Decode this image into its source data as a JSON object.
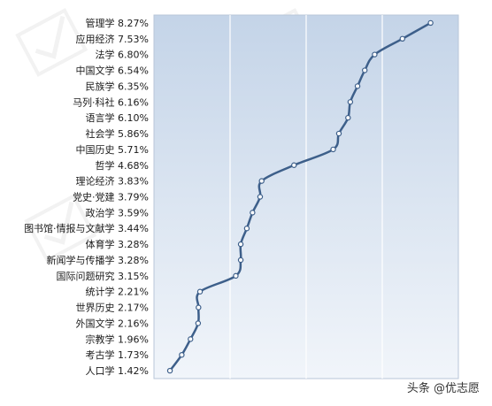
{
  "footer": {
    "source_label": "头条 @优志愿"
  },
  "colors": {
    "line": "#3d5f8a",
    "marker_fill": "#ffffff",
    "grid": "#ffffff",
    "plot_bg_start": "#c4d4e8",
    "plot_bg_end": "#f1f5fa"
  },
  "chart_data": {
    "type": "line",
    "orientation": "vertical-categories",
    "title": "",
    "xlabel": "",
    "ylabel": "",
    "xlim": [
      1.0,
      9.0
    ],
    "grid": true,
    "legend": "none",
    "categories": [
      "管理学 8.27%",
      "应用经济 7.53%",
      "法学 6.80%",
      "中国文学 6.54%",
      "民族学 6.35%",
      "马列·科社 6.16%",
      "语言学 6.10%",
      "社会学 5.86%",
      "中国历史 5.71%",
      "哲学 4.68%",
      "理论经济 3.83%",
      "党史·党建 3.79%",
      "政治学 3.59%",
      "图书馆·情报与文献学 3.44%",
      "体育学 3.28%",
      "新闻学与传播学 3.28%",
      "国际问题研究 3.15%",
      "统计学 2.21%",
      "世界历史 2.17%",
      "外国文学 2.16%",
      "宗教学 1.96%",
      "考古学 1.73%",
      "人口学 1.42%"
    ],
    "values": [
      8.27,
      7.53,
      6.8,
      6.54,
      6.35,
      6.16,
      6.1,
      5.86,
      5.71,
      4.68,
      3.83,
      3.79,
      3.59,
      3.44,
      3.28,
      3.28,
      3.15,
      2.21,
      2.17,
      2.16,
      1.96,
      1.73,
      1.42
    ]
  }
}
